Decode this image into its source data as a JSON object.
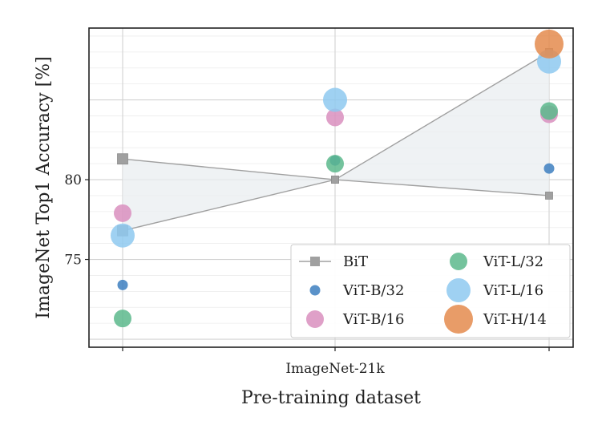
{
  "chart_data": {
    "type": "scatter",
    "xlabel": "Pre-training dataset",
    "ylabel": "ImageNet Top1 Accuracy [%]",
    "x_tick_labels": [
      "",
      "ImageNet-21k",
      ""
    ],
    "y_ticks": [
      75,
      80
    ],
    "ylim": [
      69.5,
      89.5
    ],
    "grid": true,
    "legend_position": "bottom-right",
    "legend_columns": 2,
    "series": [
      {
        "name": "BiT",
        "marker": "square",
        "color": "#a0a0a0",
        "size": "small",
        "values": [
          81.3,
          80.0,
          88.0
        ],
        "note": "upper bound"
      },
      {
        "name": "BiT",
        "marker": "square",
        "color": "#a0a0a0",
        "size": "small",
        "values": [
          76.8,
          80.0,
          79.0
        ],
        "note": "lower bound"
      },
      {
        "name": "ViT-B/32",
        "marker": "circle",
        "color": "#3d7fc0",
        "size": "small",
        "values": [
          73.4,
          81.2,
          80.7
        ]
      },
      {
        "name": "ViT-B/16",
        "marker": "circle",
        "color": "#d98fbe",
        "size": "medium",
        "values": [
          77.9,
          83.9,
          84.1
        ]
      },
      {
        "name": "ViT-L/32",
        "marker": "circle",
        "color": "#5cb98c",
        "size": "medium",
        "values": [
          71.3,
          81.0,
          84.3
        ]
      },
      {
        "name": "ViT-L/16",
        "marker": "circle",
        "color": "#8ec9f0",
        "size": "large",
        "values": [
          76.5,
          85.0,
          87.4
        ]
      },
      {
        "name": "ViT-H/14",
        "marker": "circle",
        "color": "#e48b4e",
        "size": "xlarge",
        "values": [
          null,
          null,
          88.5
        ]
      }
    ],
    "legend": {
      "col1": [
        {
          "label": "BiT",
          "marker": "square-line",
          "color": "#a0a0a0"
        },
        {
          "label": "ViT-B/32",
          "marker": "circle",
          "color": "#3d7fc0",
          "size": "small"
        },
        {
          "label": "ViT-B/16",
          "marker": "circle",
          "color": "#d98fbe",
          "size": "medium"
        }
      ],
      "col2": [
        {
          "label": "ViT-L/32",
          "marker": "circle",
          "color": "#5cb98c",
          "size": "medium"
        },
        {
          "label": "ViT-L/16",
          "marker": "circle",
          "color": "#8ec9f0",
          "size": "large"
        },
        {
          "label": "ViT-H/14",
          "marker": "circle",
          "color": "#e48b4e",
          "size": "xlarge"
        }
      ]
    }
  }
}
